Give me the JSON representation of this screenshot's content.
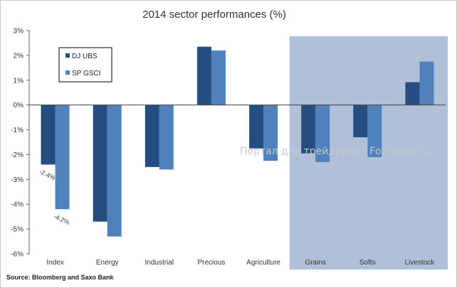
{
  "chart_data": {
    "type": "bar",
    "title": "2014 sector performances (%)",
    "categories": [
      "Index",
      "Energy",
      "Industrial",
      "Precious",
      "Agriculture",
      "Grains",
      "Softs",
      "Livestock"
    ],
    "series": [
      {
        "name": "DJ UBS",
        "color": "#254d80",
        "values": [
          -2.4,
          -4.7,
          -2.5,
          2.35,
          -1.75,
          -1.95,
          -1.3,
          0.92
        ]
      },
      {
        "name": "SP GSCI",
        "color": "#4f81bd",
        "values": [
          -4.2,
          -5.3,
          -2.6,
          2.2,
          -2.25,
          -2.3,
          -2.1,
          1.75
        ]
      }
    ],
    "ylim": [
      -6,
      3
    ],
    "yticks": [
      3,
      2,
      1,
      0,
      -1,
      -2,
      -3,
      -4,
      -5,
      -6
    ],
    "ytick_labels": [
      "3%",
      "2%",
      "1%",
      "0%",
      "-1%",
      "-2%",
      "-3%",
      "-4%",
      "-5%",
      "-6%"
    ],
    "data_labels": [
      {
        "category": "Index",
        "series": "DJ UBS",
        "text": "-2.4%"
      },
      {
        "category": "Index",
        "series": "SP GSCI",
        "text": "-4.2%"
      }
    ],
    "highlight": {
      "from_category": "Grains",
      "to_category": "Livestock",
      "color": "#b0c0d8"
    },
    "legend_position": "top-left",
    "grid": false
  },
  "source_text": "Source: Bloomberg and Saxo Bank",
  "watermark_text": "Портал для трейдеров - ForTrader.ru"
}
